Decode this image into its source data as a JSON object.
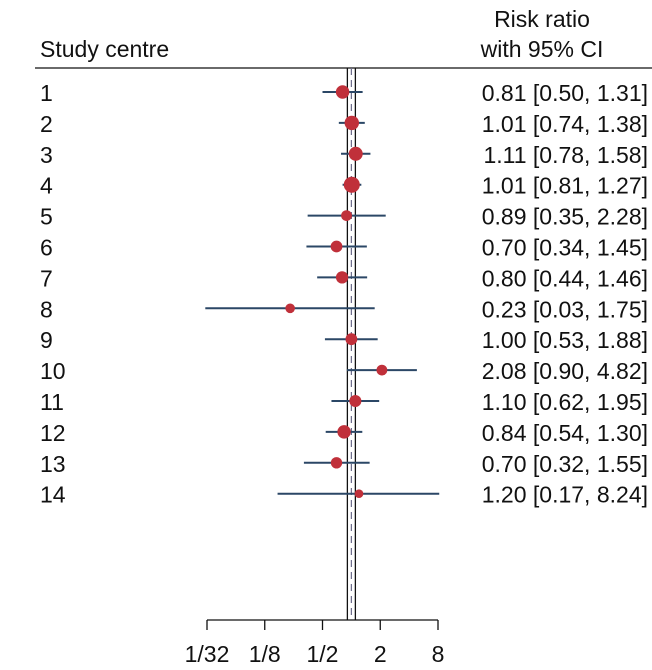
{
  "header": {
    "study_label": "Study centre",
    "rr_label_line1": "Risk ratio",
    "rr_label_line2": "with 95% CI"
  },
  "chart_data": {
    "type": "forest",
    "x_scale": "log2",
    "xlim": [
      0.03125,
      8
    ],
    "x_ticks": [
      0.03125,
      0.125,
      0.5,
      2,
      8
    ],
    "x_tick_labels": [
      "1/32",
      "1/8",
      "1/2",
      "2",
      "8"
    ],
    "reference_lines": {
      "null_effect": 1,
      "pooled_estimate": 1.0
    },
    "colors": {
      "point": "#c0303a",
      "ci": "#2b4766",
      "axis": "#111111",
      "dashed": "#6a6a8a"
    },
    "studies": [
      {
        "label": "1",
        "rr": 0.81,
        "lo": 0.5,
        "hi": 1.31,
        "weight": 0.62,
        "text": "0.81 [0.50, 1.31]"
      },
      {
        "label": "2",
        "rr": 1.01,
        "lo": 0.74,
        "hi": 1.38,
        "weight": 0.75,
        "text": "1.01 [0.74, 1.38]"
      },
      {
        "label": "3",
        "rr": 1.11,
        "lo": 0.78,
        "hi": 1.58,
        "weight": 0.7,
        "text": "1.11 [0.78, 1.58]"
      },
      {
        "label": "4",
        "rr": 1.01,
        "lo": 0.81,
        "hi": 1.27,
        "weight": 1.0,
        "text": "1.01 [0.81, 1.27]"
      },
      {
        "label": "5",
        "rr": 0.89,
        "lo": 0.35,
        "hi": 2.28,
        "weight": 0.32,
        "text": "0.89 [0.35, 2.28]"
      },
      {
        "label": "6",
        "rr": 0.7,
        "lo": 0.34,
        "hi": 1.45,
        "weight": 0.42,
        "text": "0.70 [0.34, 1.45]"
      },
      {
        "label": "7",
        "rr": 0.8,
        "lo": 0.44,
        "hi": 1.46,
        "weight": 0.48,
        "text": "0.80 [0.44, 1.46]"
      },
      {
        "label": "8",
        "rr": 0.23,
        "lo": 0.03,
        "hi": 1.75,
        "weight": 0.22,
        "text": "0.23 [0.03, 1.75]"
      },
      {
        "label": "9",
        "rr": 1.0,
        "lo": 0.53,
        "hi": 1.88,
        "weight": 0.42,
        "text": "1.00 [0.53, 1.88]"
      },
      {
        "label": "10",
        "rr": 2.08,
        "lo": 0.9,
        "hi": 4.82,
        "weight": 0.32,
        "text": "2.08 [0.90, 4.82]"
      },
      {
        "label": "11",
        "rr": 1.1,
        "lo": 0.62,
        "hi": 1.95,
        "weight": 0.45,
        "text": "1.10 [0.62, 1.95]"
      },
      {
        "label": "12",
        "rr": 0.84,
        "lo": 0.54,
        "hi": 1.3,
        "weight": 0.62,
        "text": "0.84 [0.54, 1.30]"
      },
      {
        "label": "13",
        "rr": 0.7,
        "lo": 0.32,
        "hi": 1.55,
        "weight": 0.38,
        "text": "0.70 [0.32, 1.55]"
      },
      {
        "label": "14",
        "rr": 1.2,
        "lo": 0.17,
        "hi": 8.24,
        "weight": 0.15,
        "text": "1.20 [0.17, 8.24]"
      }
    ]
  }
}
